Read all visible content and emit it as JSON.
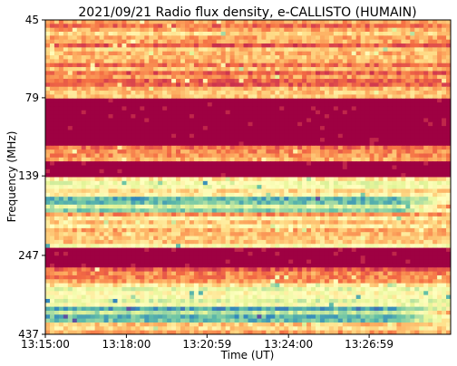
{
  "chart_data": {
    "type": "heatmap",
    "title": "2021/09/21  Radio flux density, e-CALLISTO (HUMAIN)",
    "xlabel": "Time (UT)",
    "ylabel": "Frequency (MHz)",
    "x_ticks": [
      "13:15:00",
      "13:18:00",
      "13:20:59",
      "13:24:00",
      "13:26:59"
    ],
    "y_ticks": [
      "45",
      "79",
      "139",
      "247",
      "437"
    ],
    "x_range": [
      "13:15:00",
      "13:30:00"
    ],
    "y_range": [
      45,
      437
    ],
    "y_direction": "downward-increasing",
    "colormap": "Spectral",
    "grid": false,
    "bands": [
      {
        "f_start": 45,
        "f_end": 79,
        "level": 0.25
      },
      {
        "f_start": 79,
        "f_end": 112,
        "level": 0.0
      },
      {
        "f_start": 112,
        "f_end": 126,
        "level": 0.3
      },
      {
        "f_start": 126,
        "f_end": 139,
        "level": 0.0
      },
      {
        "f_start": 139,
        "f_end": 160,
        "level": 0.45
      },
      {
        "f_start": 160,
        "f_end": 180,
        "level": 0.72
      },
      {
        "f_start": 180,
        "f_end": 232,
        "level": 0.38
      },
      {
        "f_start": 232,
        "f_end": 270,
        "level": 0.0
      },
      {
        "f_start": 270,
        "f_end": 300,
        "level": 0.3
      },
      {
        "f_start": 300,
        "f_end": 355,
        "level": 0.5
      },
      {
        "f_start": 355,
        "f_end": 400,
        "level": 0.8
      },
      {
        "f_start": 400,
        "f_end": 437,
        "level": 0.35
      }
    ]
  }
}
